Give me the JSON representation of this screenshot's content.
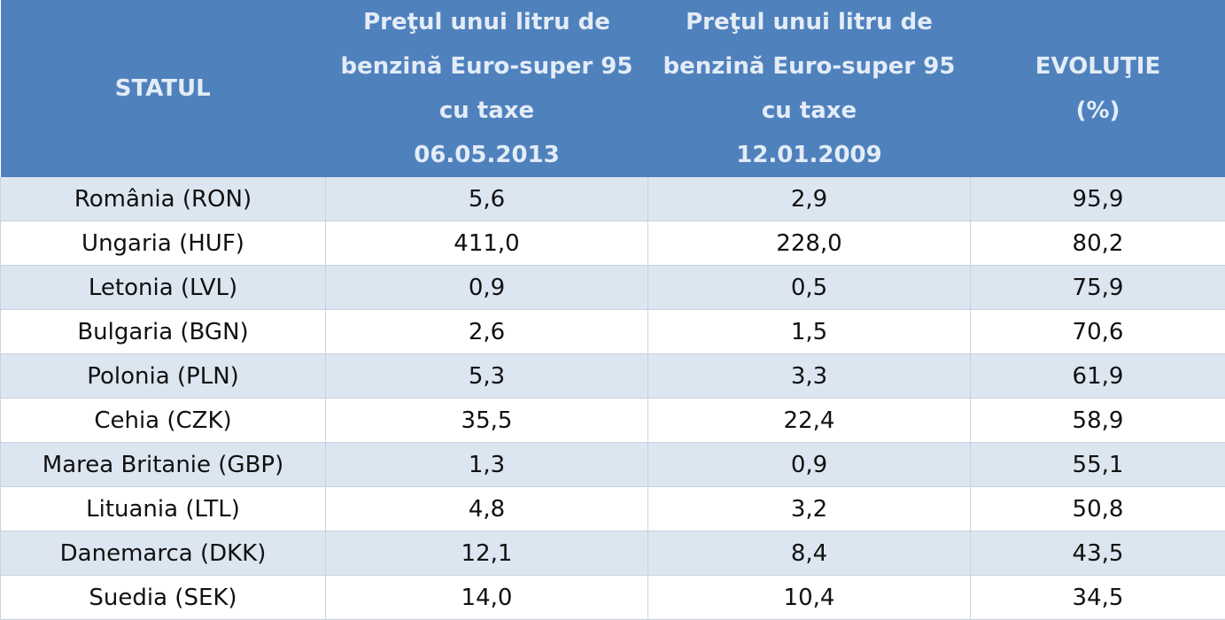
{
  "table": {
    "header": [
      [
        "STATUL"
      ],
      [
        "Preţul unui litru de",
        "benzină Euro-super 95",
        "cu taxe",
        "06.05.2013"
      ],
      [
        "Preţul unui litru de",
        "benzină Euro-super 95",
        "cu taxe",
        "12.01.2009"
      ],
      [
        "EVOLUŢIE",
        "(%)"
      ]
    ],
    "rows": [
      [
        "România (RON)",
        "5,6",
        "2,9",
        "95,9"
      ],
      [
        "Ungaria (HUF)",
        "411,0",
        "228,0",
        "80,2"
      ],
      [
        "Letonia (LVL)",
        "0,9",
        "0,5",
        "75,9"
      ],
      [
        "Bulgaria (BGN)",
        "2,6",
        "1,5",
        "70,6"
      ],
      [
        "Polonia (PLN)",
        "5,3",
        "3,3",
        "61,9"
      ],
      [
        "Cehia (CZK)",
        "35,5",
        "22,4",
        "58,9"
      ],
      [
        "Marea Britanie (GBP)",
        "1,3",
        "0,9",
        "55,1"
      ],
      [
        "Lituania (LTL)",
        "4,8",
        "3,2",
        "50,8"
      ],
      [
        "Danemarca (DKK)",
        "12,1",
        "8,4",
        "43,5"
      ],
      [
        "Suedia (SEK)",
        "14,0",
        "10,4",
        "34,5"
      ]
    ]
  }
}
